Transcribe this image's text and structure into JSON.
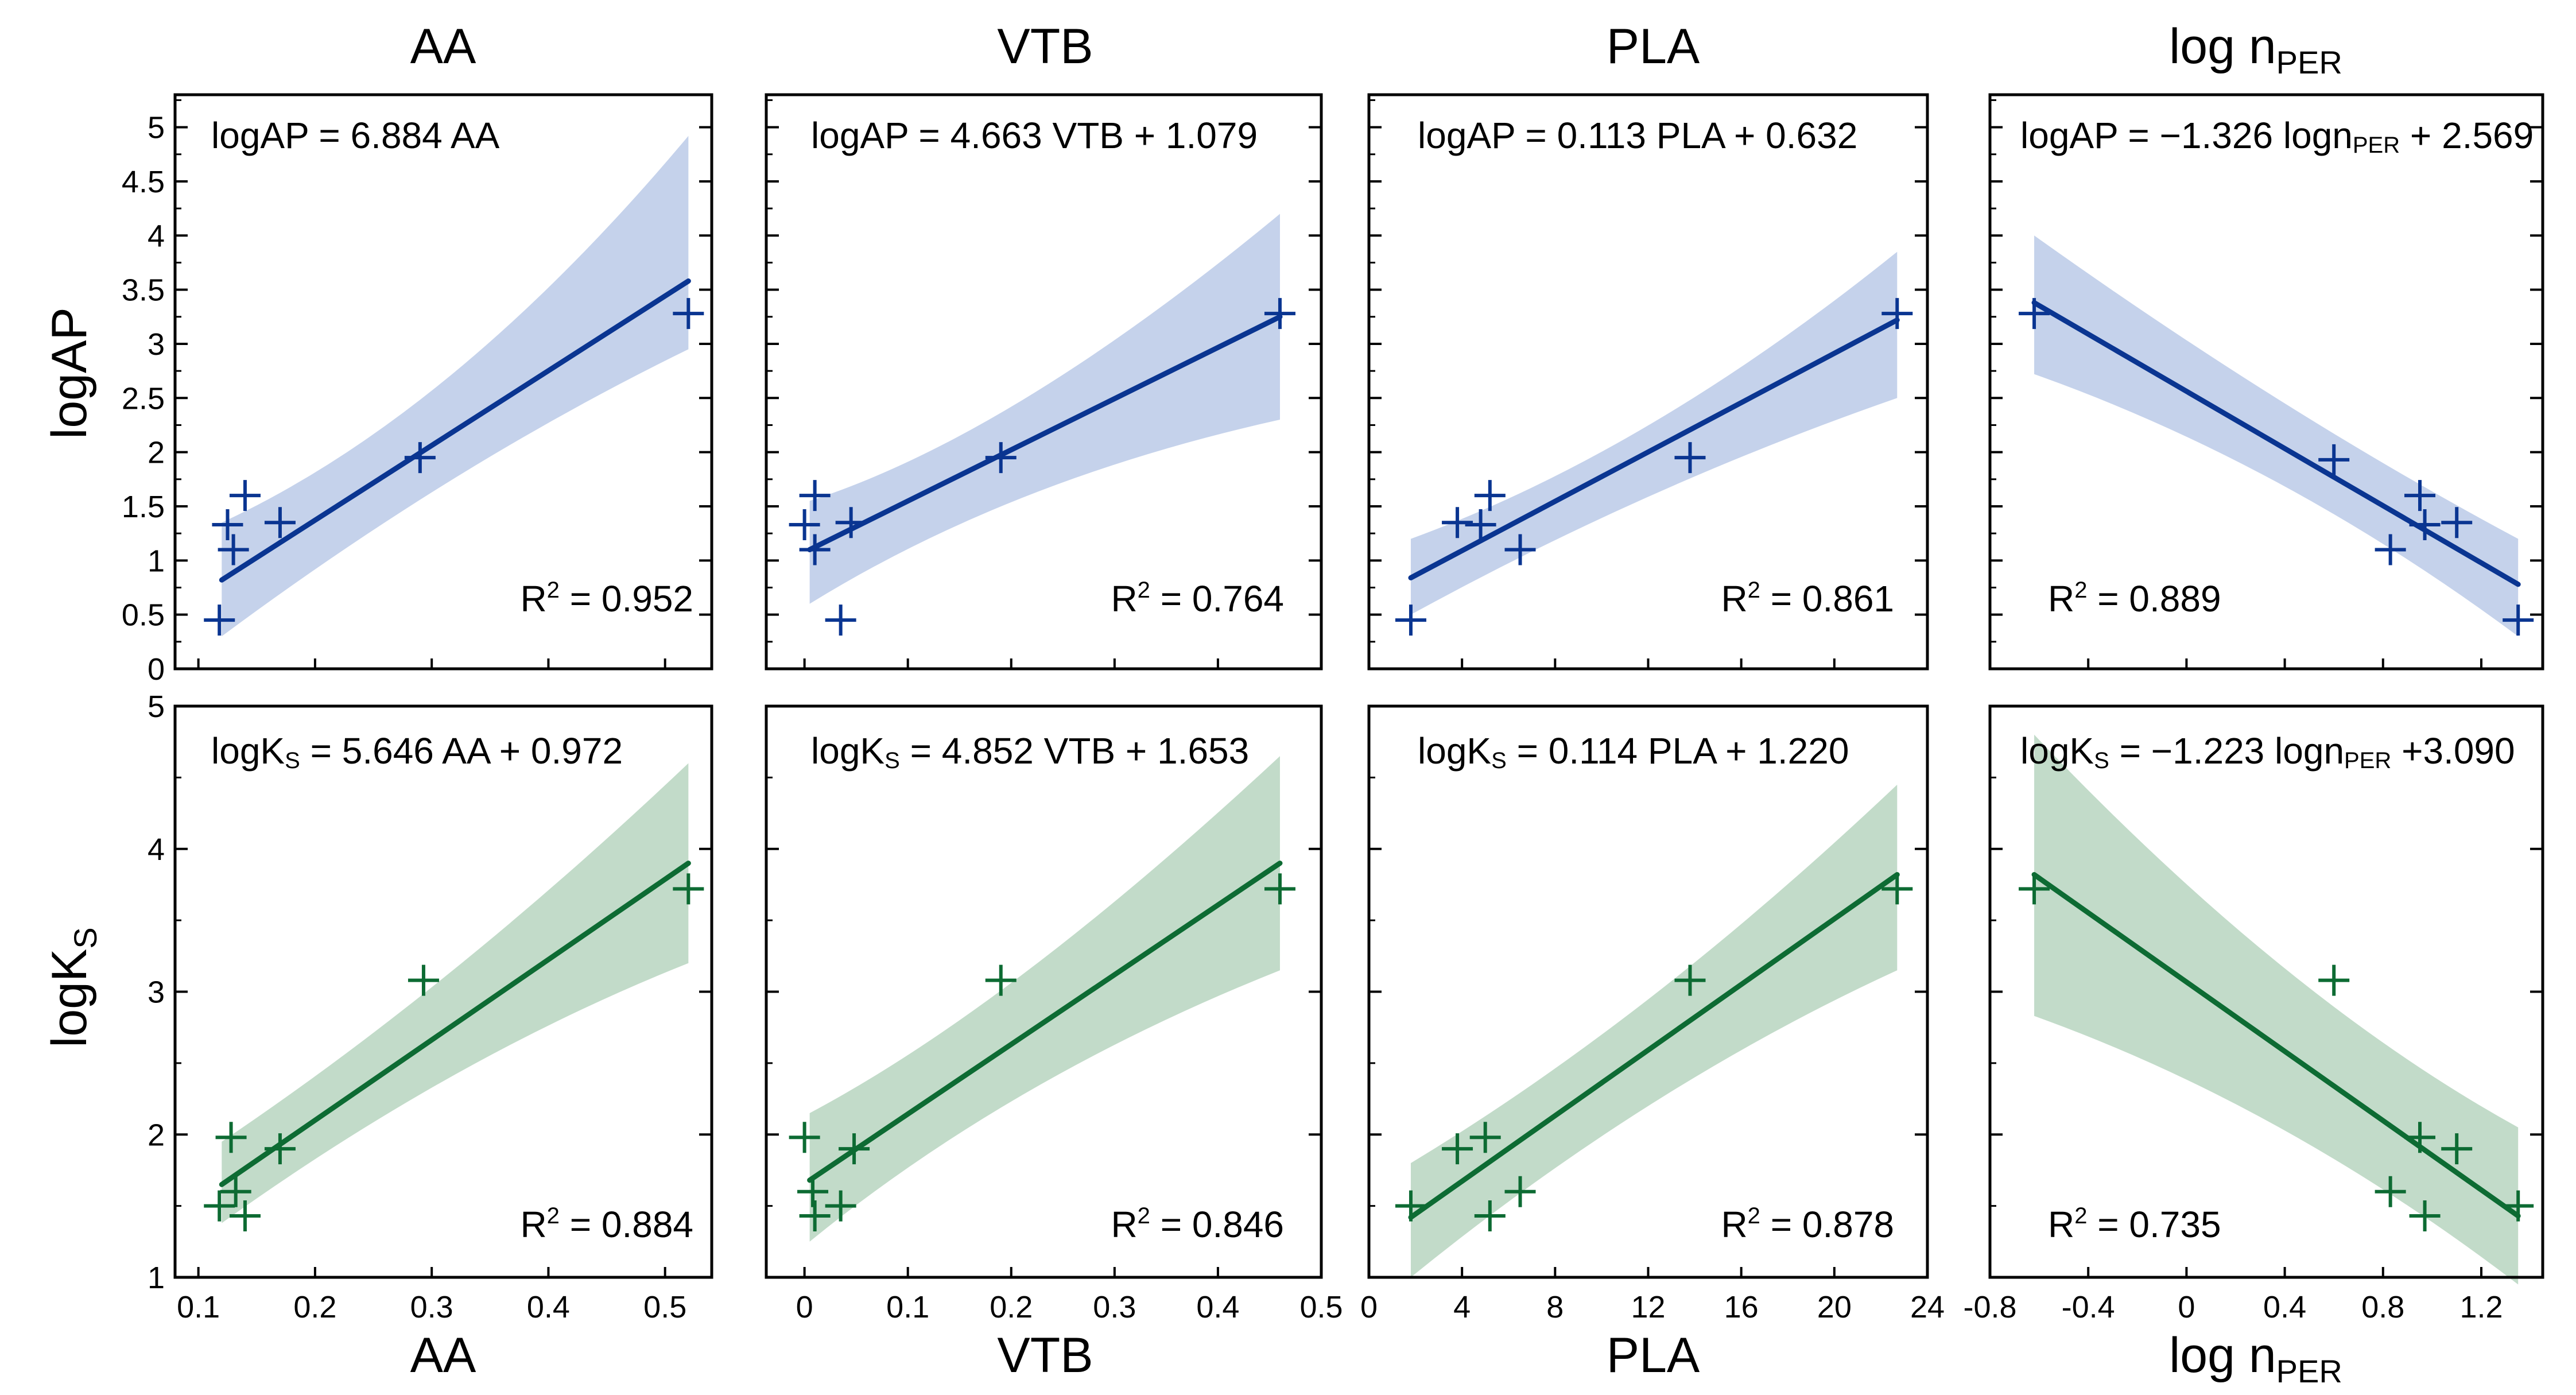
{
  "column_titles": [
    "AA",
    "VTB",
    "PLA",
    "log n",
    "PER"
  ],
  "row_labels": {
    "top": "logAP",
    "bottom": [
      "logK",
      "S"
    ]
  },
  "x_labels": [
    "AA",
    "VTB",
    "PLA",
    "log n",
    "PER"
  ],
  "colors": {
    "blue_line": "#0a3591",
    "blue_band": "#c5d2eb",
    "green_line": "#0d6b33",
    "green_band": "#c2dbc9"
  },
  "chart_data": [
    {
      "type": "scatter",
      "id": "ap-aa",
      "title": "AA",
      "x_variable": "AA",
      "y_variable": "logAP",
      "xlim": [
        0.08,
        0.54
      ],
      "ylim": [
        0,
        5.3
      ],
      "x_ticks": [
        "0.1",
        "0.2",
        "0.3",
        "0.4",
        "0.5"
      ],
      "y_ticks": [
        "0",
        "0.5",
        "1",
        "1.5",
        "2",
        "2.5",
        "3",
        "3.5",
        "4",
        "4.5",
        "5"
      ],
      "points": [
        [
          0.118,
          0.45
        ],
        [
          0.125,
          1.33
        ],
        [
          0.13,
          1.1
        ],
        [
          0.14,
          1.6
        ],
        [
          0.17,
          1.35
        ],
        [
          0.29,
          1.95
        ],
        [
          0.52,
          3.28
        ]
      ],
      "fit_line": [
        [
          0.12,
          0.82
        ],
        [
          0.52,
          3.58
        ]
      ],
      "confidence_band": {
        "x": [
          0.12,
          0.32,
          0.52
        ],
        "upper": [
          1.35,
          2.35,
          4.92
        ],
        "lower": [
          0.3,
          1.9,
          2.95
        ]
      },
      "equation": [
        "logAP = 6.884 AA"
      ],
      "r2_label": [
        "R",
        "2",
        " = 0.952"
      ]
    },
    {
      "type": "scatter",
      "id": "ap-vtb",
      "title": "VTB",
      "x_variable": "VTB",
      "y_variable": "logAP",
      "xlim": [
        -0.037,
        0.5
      ],
      "ylim": [
        0,
        5.3
      ],
      "x_ticks": [
        "0",
        "0.1",
        "0.2",
        "0.3",
        "0.4",
        "0.5"
      ],
      "y_ticks": [
        "0",
        "0.5",
        "1",
        "1.5",
        "2",
        "2.5",
        "3",
        "3.5",
        "4",
        "4.5",
        "5"
      ],
      "points": [
        [
          0.0,
          1.33
        ],
        [
          0.01,
          1.1
        ],
        [
          0.01,
          1.6
        ],
        [
          0.035,
          0.45
        ],
        [
          0.045,
          1.35
        ],
        [
          0.19,
          1.95
        ],
        [
          0.46,
          3.28
        ]
      ],
      "fit_line": [
        [
          0.005,
          1.1
        ],
        [
          0.46,
          3.25
        ]
      ],
      "confidence_band": {
        "x": [
          0.005,
          0.2,
          0.46
        ],
        "upper": [
          1.55,
          2.15,
          4.2
        ],
        "lower": [
          0.6,
          1.75,
          2.3
        ]
      },
      "equation": [
        "logAP = 4.663 VTB + 1.079"
      ],
      "r2_label": [
        "R",
        "2",
        " = 0.764"
      ]
    },
    {
      "type": "scatter",
      "id": "ap-pla",
      "title": "PLA",
      "x_variable": "PLA",
      "y_variable": "logAP",
      "xlim": [
        0,
        24
      ],
      "ylim": [
        0,
        5.3
      ],
      "x_ticks": [
        "0",
        "4",
        "8",
        "12",
        "16",
        "20",
        "24"
      ],
      "y_ticks": [
        "0",
        "0.5",
        "1",
        "1.5",
        "2",
        "2.5",
        "3",
        "3.5",
        "4",
        "4.5",
        "5"
      ],
      "points": [
        [
          1.8,
          0.45
        ],
        [
          3.8,
          1.35
        ],
        [
          4.8,
          1.33
        ],
        [
          5.2,
          1.6
        ],
        [
          6.5,
          1.1
        ],
        [
          13.8,
          1.95
        ],
        [
          22.7,
          3.28
        ]
      ],
      "fit_line": [
        [
          1.8,
          0.84
        ],
        [
          22.7,
          3.22
        ]
      ],
      "confidence_band": {
        "x": [
          1.8,
          12.0,
          22.7
        ],
        "upper": [
          1.2,
          2.0,
          3.85
        ],
        "lower": [
          0.5,
          1.7,
          2.5
        ]
      },
      "equation": [
        "logAP = 0.113 PLA + 0.632"
      ],
      "r2_label": [
        "R",
        "2",
        " = 0.861"
      ]
    },
    {
      "type": "scatter",
      "id": "ap-logn",
      "title": "log nPER",
      "x_variable": "log nPER",
      "y_variable": "logAP",
      "xlim": [
        -0.8,
        1.45
      ],
      "ylim": [
        0,
        5.3
      ],
      "x_ticks": [
        "-0.8",
        "-0.4",
        "0",
        "0.4",
        "0.8",
        "1.2"
      ],
      "y_ticks": [
        "0",
        "0.5",
        "1",
        "1.5",
        "2",
        "2.5",
        "3",
        "3.5",
        "4",
        "4.5",
        "5"
      ],
      "points": [
        [
          -0.62,
          3.28
        ],
        [
          0.6,
          1.93
        ],
        [
          0.83,
          1.1
        ],
        [
          0.95,
          1.6
        ],
        [
          0.97,
          1.33
        ],
        [
          1.1,
          1.35
        ],
        [
          1.35,
          0.45
        ]
      ],
      "fit_line": [
        [
          -0.62,
          3.38
        ],
        [
          1.35,
          0.78
        ]
      ],
      "confidence_band": {
        "x": [
          -0.62,
          0.4,
          1.35
        ],
        "upper": [
          4.0,
          2.35,
          1.2
        ],
        "lower": [
          2.72,
          1.9,
          0.3
        ]
      },
      "equation": [
        "logAP = −1.326 logn",
        "PER",
        " + 2.569"
      ],
      "r2_label": [
        "R",
        "2",
        " = 0.889"
      ]
    },
    {
      "type": "scatter",
      "id": "ks-aa",
      "title": "AA",
      "x_variable": "AA",
      "y_variable": "logKS",
      "xlim": [
        0.08,
        0.54
      ],
      "ylim": [
        1,
        5
      ],
      "x_ticks": [
        "0.1",
        "0.2",
        "0.3",
        "0.4",
        "0.5"
      ],
      "y_ticks": [
        "1",
        "2",
        "3",
        "4",
        "5"
      ],
      "points": [
        [
          0.118,
          1.5
        ],
        [
          0.128,
          1.98
        ],
        [
          0.132,
          1.6
        ],
        [
          0.14,
          1.43
        ],
        [
          0.17,
          1.9
        ],
        [
          0.293,
          3.08
        ],
        [
          0.52,
          3.72
        ]
      ],
      "fit_line": [
        [
          0.12,
          1.65
        ],
        [
          0.52,
          3.9
        ]
      ],
      "confidence_band": {
        "x": [
          0.12,
          0.32,
          0.52
        ],
        "upper": [
          1.95,
          3.05,
          4.6
        ],
        "lower": [
          1.38,
          2.55,
          3.2
        ]
      },
      "equation": [
        "logK",
        "S",
        " = 5.646 AA + 0.972"
      ],
      "r2_label": [
        "R",
        "2",
        " = 0.884"
      ]
    },
    {
      "type": "scatter",
      "id": "ks-vtb",
      "title": "VTB",
      "x_variable": "VTB",
      "y_variable": "logKS",
      "xlim": [
        -0.037,
        0.5
      ],
      "ylim": [
        1,
        5
      ],
      "x_ticks": [
        "0",
        "0.1",
        "0.2",
        "0.3",
        "0.4",
        "0.5"
      ],
      "y_ticks": [
        "1",
        "2",
        "3",
        "4",
        "5"
      ],
      "points": [
        [
          0.0,
          1.98
        ],
        [
          0.008,
          1.6
        ],
        [
          0.01,
          1.43
        ],
        [
          0.035,
          1.5
        ],
        [
          0.048,
          1.9
        ],
        [
          0.19,
          3.08
        ],
        [
          0.46,
          3.72
        ]
      ],
      "fit_line": [
        [
          0.005,
          1.68
        ],
        [
          0.46,
          3.9
        ]
      ],
      "confidence_band": {
        "x": [
          0.005,
          0.2,
          0.46
        ],
        "upper": [
          2.15,
          2.9,
          4.65
        ],
        "lower": [
          1.25,
          2.4,
          3.15
        ]
      },
      "equation": [
        "logK",
        "S",
        " = 4.852 VTB + 1.653"
      ],
      "r2_label": [
        "R",
        "2",
        " = 0.846"
      ]
    },
    {
      "type": "scatter",
      "id": "ks-pla",
      "title": "PLA",
      "x_variable": "PLA",
      "y_variable": "logKS",
      "xlim": [
        0,
        24
      ],
      "ylim": [
        1,
        5
      ],
      "x_ticks": [
        "0",
        "4",
        "8",
        "12",
        "16",
        "20",
        "24"
      ],
      "y_ticks": [
        "1",
        "2",
        "3",
        "4",
        "5"
      ],
      "points": [
        [
          1.8,
          1.5
        ],
        [
          3.8,
          1.9
        ],
        [
          5.0,
          1.98
        ],
        [
          5.2,
          1.43
        ],
        [
          6.5,
          1.6
        ],
        [
          13.8,
          3.08
        ],
        [
          22.7,
          3.72
        ]
      ],
      "fit_line": [
        [
          1.8,
          1.42
        ],
        [
          22.7,
          3.82
        ]
      ],
      "confidence_band": {
        "x": [
          1.8,
          12.0,
          22.7
        ],
        "upper": [
          1.8,
          2.8,
          4.45
        ],
        "lower": [
          1.0,
          2.35,
          3.15
        ]
      },
      "equation": [
        "logK",
        "S",
        " = 0.114 PLA + 1.220"
      ],
      "r2_label": [
        "R",
        "2",
        " = 0.878"
      ]
    },
    {
      "type": "scatter",
      "id": "ks-logn",
      "title": "log nPER",
      "x_variable": "log nPER",
      "y_variable": "logKS",
      "xlim": [
        -0.8,
        1.45
      ],
      "ylim": [
        1,
        5
      ],
      "x_ticks": [
        "-0.8",
        "-0.4",
        "0",
        "0.4",
        "0.8",
        "1.2"
      ],
      "y_ticks": [
        "1",
        "2",
        "3",
        "4",
        "5"
      ],
      "points": [
        [
          -0.62,
          3.72
        ],
        [
          0.6,
          3.08
        ],
        [
          0.83,
          1.6
        ],
        [
          0.95,
          1.98
        ],
        [
          0.97,
          1.43
        ],
        [
          1.1,
          1.9
        ],
        [
          1.35,
          1.5
        ]
      ],
      "fit_line": [
        [
          -0.62,
          3.82
        ],
        [
          1.35,
          1.43
        ]
      ],
      "confidence_band": {
        "x": [
          -0.62,
          0.4,
          1.35
        ],
        "upper": [
          4.8,
          2.95,
          2.05
        ],
        "lower": [
          2.83,
          2.2,
          0.95
        ]
      },
      "equation": [
        "logK",
        "S",
        " = −1.223 logn",
        "PER",
        " +3.090"
      ],
      "r2_label": [
        "R",
        "2",
        " = 0.735"
      ]
    }
  ]
}
